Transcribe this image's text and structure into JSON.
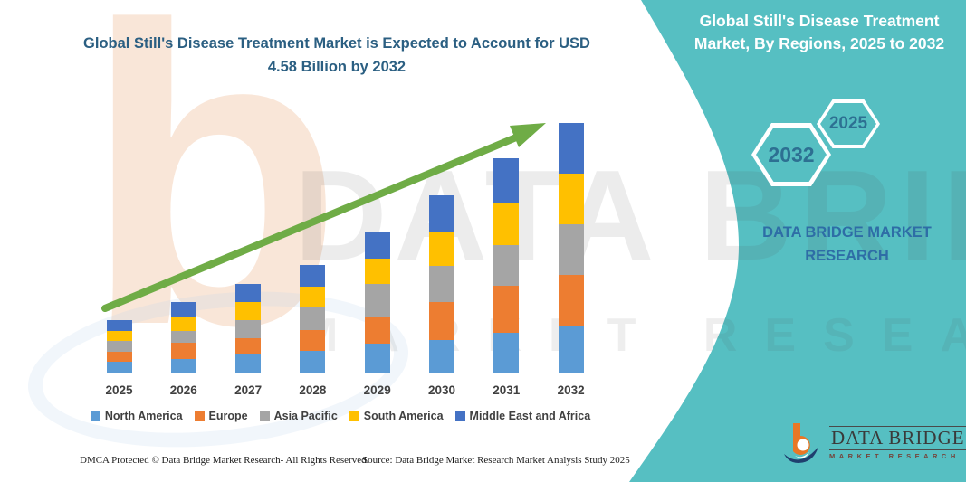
{
  "colors": {
    "teal_panel": "#56BFC2",
    "left_title_text": "#2B5F82",
    "right_title_text": "#FFFFFF",
    "hexagon_text": "#2D7092",
    "hexagon_border": "#FFFFFF",
    "dbmr_name_text": "#2E6DA6",
    "arrow_green": "#6FAC46",
    "axis_line": "#D6D6D6",
    "axis_label_text": "#404040",
    "logo_orange": "#E87725",
    "logo_navy": "#1F3F6E"
  },
  "header": {
    "left_title": "Global Still's Disease Treatment Market is Expected to Account for USD 4.58 Billion by 2032",
    "right_title": "Global Still's Disease Treatment Market, By Regions, 2025 to 2032"
  },
  "hexagons": [
    {
      "label": "2032"
    },
    {
      "label": "2025"
    }
  ],
  "brand_panel": {
    "name": "DATA BRIDGE MARKET RESEARCH"
  },
  "logo": {
    "title": "DATA BRIDGE",
    "subtitle": "MARKET RESEARCH"
  },
  "footer": {
    "dmca": "DMCA Protected © Data Bridge Market Research-  All Rights Reserved.",
    "source": "Source: Data Bridge Market Research  Market Analysis Study 2025"
  },
  "chart_data": {
    "type": "bar",
    "stacked": true,
    "title": "Global Still's Disease Treatment Market is Expected to Account for USD 4.58 Billion by 2032",
    "unit": "USD Billion",
    "categories": [
      "2025",
      "2026",
      "2027",
      "2028",
      "2029",
      "2030",
      "2031",
      "2032"
    ],
    "series": [
      {
        "name": "North America",
        "color": "#5B9BD5",
        "values": [
          0.22,
          0.26,
          0.34,
          0.41,
          0.54,
          0.61,
          0.75,
          0.88
        ]
      },
      {
        "name": "Europe",
        "color": "#ED7D31",
        "values": [
          0.18,
          0.3,
          0.31,
          0.39,
          0.5,
          0.7,
          0.86,
          0.92
        ]
      },
      {
        "name": "Asia Pacific",
        "color": "#A5A5A5",
        "values": [
          0.19,
          0.22,
          0.33,
          0.4,
          0.6,
          0.65,
          0.74,
          0.93
        ]
      },
      {
        "name": "South America",
        "color": "#FFC000",
        "values": [
          0.19,
          0.26,
          0.33,
          0.39,
          0.46,
          0.63,
          0.75,
          0.92
        ]
      },
      {
        "name": "Middle East and Africa",
        "color": "#4472C4",
        "values": [
          0.2,
          0.27,
          0.33,
          0.39,
          0.5,
          0.67,
          0.83,
          0.93
        ]
      }
    ],
    "totals": [
      0.98,
      1.31,
      1.64,
      1.98,
      2.6,
      3.26,
      3.93,
      4.58
    ],
    "ylim": [
      0,
      4.6
    ],
    "grid": false,
    "legend_position": "bottom",
    "trend_arrow": true,
    "watermark": {
      "letter": "b",
      "line1": "DATA BRIDGE",
      "line2": "MARKET RESEARCH"
    }
  }
}
